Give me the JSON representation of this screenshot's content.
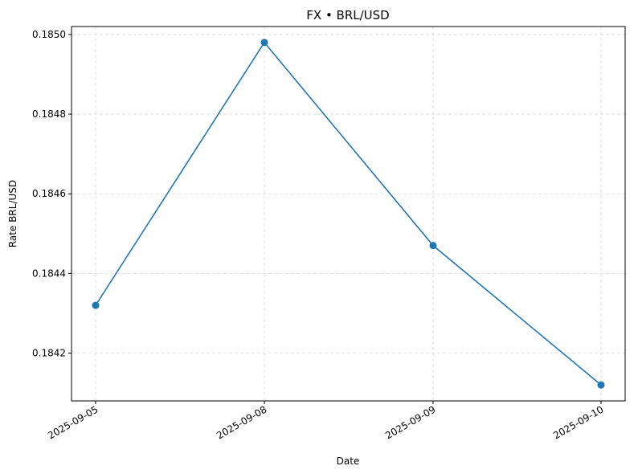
{
  "chart_data": {
    "type": "line",
    "title": "FX • BRL/USD",
    "xlabel": "Date",
    "ylabel": "Rate BRL/USD",
    "categories": [
      "2025-09-05",
      "2025-09-08",
      "2025-09-09",
      "2025-09-10"
    ],
    "series": [
      {
        "values": [
          0.18432,
          0.18498,
          0.18447,
          0.18412
        ]
      }
    ],
    "ylim": [
      0.18408,
      0.18502
    ],
    "yticks": [
      "0.1842",
      "0.1844",
      "0.1846",
      "0.1848",
      "0.1850"
    ],
    "grid": true,
    "line_color": "#1f77b4"
  }
}
